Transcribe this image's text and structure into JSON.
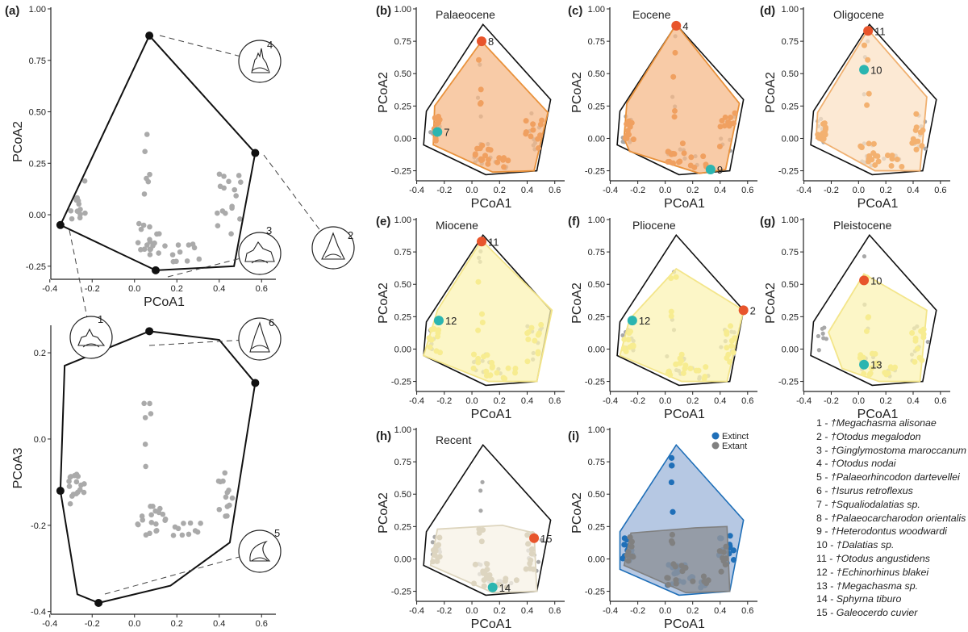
{
  "chart_data": [
    {
      "panel": "(a)",
      "type": "scatter",
      "title": "",
      "xlabel": "PCoA1",
      "ylabel": "PCoA2",
      "xlim": [
        -0.38,
        0.66
      ],
      "ylim": [
        -0.29,
        1.0
      ],
      "xticks": [
        -0.4,
        -0.2,
        0.0,
        0.2,
        0.4,
        0.6
      ],
      "yticks": [
        -0.25,
        0.0,
        0.25,
        0.5,
        0.75,
        1.0
      ],
      "hull_vertices": [
        [
          0.07,
          0.87
        ],
        [
          0.57,
          0.3
        ],
        [
          0.47,
          -0.25
        ],
        [
          0.1,
          -0.27
        ],
        [
          -0.35,
          -0.05
        ]
      ],
      "highlight_points": [
        [
          0.07,
          0.87
        ],
        [
          0.57,
          0.3
        ],
        [
          0.1,
          -0.27
        ],
        [
          -0.35,
          -0.05
        ]
      ],
      "tooth_icons": [
        {
          "label": "4",
          "vertex": [
            0.07,
            0.87
          ]
        },
        {
          "label": "3",
          "vertex": [
            0.1,
            -0.27
          ]
        },
        {
          "label": "2",
          "vertex": [
            0.57,
            0.3
          ]
        },
        {
          "label": "1",
          "vertex": [
            -0.35,
            -0.05
          ]
        }
      ]
    },
    {
      "panel": "",
      "type": "scatter",
      "title": "",
      "xlabel": "PCoA1",
      "ylabel": "PCoA3",
      "xlim": [
        -0.38,
        0.66
      ],
      "ylim": [
        -0.395,
        0.26
      ],
      "xticks": [
        -0.4,
        -0.2,
        0.0,
        0.2,
        0.4,
        0.6
      ],
      "yticks": [
        -0.4,
        -0.2,
        0.0,
        0.2
      ],
      "hull_vertices": [
        [
          0.07,
          0.25
        ],
        [
          0.4,
          0.23
        ],
        [
          0.57,
          0.13
        ],
        [
          0.45,
          -0.24
        ],
        [
          0.17,
          -0.34
        ],
        [
          -0.17,
          -0.38
        ],
        [
          -0.27,
          -0.36
        ],
        [
          -0.35,
          -0.12
        ],
        [
          -0.33,
          0.17
        ]
      ],
      "highlight_points": [
        [
          0.07,
          0.25
        ],
        [
          0.57,
          0.13
        ],
        [
          -0.17,
          -0.38
        ],
        [
          -0.35,
          -0.12
        ]
      ],
      "tooth_icons": [
        {
          "label": "6",
          "vertex": [
            0.07,
            0.25
          ]
        },
        {
          "label": "5",
          "vertex": [
            -0.17,
            -0.38
          ]
        }
      ]
    },
    {
      "panel": "(b)",
      "type": "scatter",
      "title": "Palaeocene",
      "xlabel": "PCoA1",
      "ylabel": "PCoA2",
      "xlim": [
        -0.38,
        0.66
      ],
      "ylim": [
        -0.29,
        1.0
      ],
      "xticks": [
        -0.4,
        -0.2,
        0.0,
        0.2,
        0.4,
        0.6
      ],
      "yticks": [
        -0.25,
        0.0,
        0.25,
        0.5,
        0.75,
        1.0
      ],
      "fill": "#f5b98a",
      "edge": "#e9923c",
      "point": "#f0a060",
      "hull_vertices": [
        [
          0.07,
          0.75
        ],
        [
          0.55,
          0.2
        ],
        [
          0.45,
          -0.25
        ],
        [
          0.15,
          -0.26
        ],
        [
          -0.28,
          -0.05
        ],
        [
          -0.27,
          0.25
        ]
      ],
      "highlights": [
        {
          "label": "8",
          "x": 0.07,
          "y": 0.75,
          "color": "#e8552c"
        },
        {
          "label": "7",
          "x": -0.25,
          "y": 0.05,
          "color": "#2bb5b0"
        }
      ]
    },
    {
      "panel": "(c)",
      "type": "scatter",
      "title": "Eocene",
      "xlabel": "PCoA1",
      "ylabel": "PCoA2",
      "xlim": [
        -0.38,
        0.66
      ],
      "ylim": [
        -0.29,
        1.0
      ],
      "xticks": [
        -0.4,
        -0.2,
        0.0,
        0.2,
        0.4,
        0.6
      ],
      "yticks": [
        -0.25,
        0.0,
        0.25,
        0.5,
        0.75,
        1.0
      ],
      "fill": "#f5b98a",
      "edge": "#e9923c",
      "point": "#f0a060",
      "hull_vertices": [
        [
          0.08,
          0.88
        ],
        [
          0.54,
          0.27
        ],
        [
          0.44,
          -0.24
        ],
        [
          0.25,
          -0.27
        ],
        [
          -0.26,
          -0.1
        ],
        [
          -0.3,
          0.0
        ],
        [
          -0.28,
          0.27
        ]
      ],
      "highlights": [
        {
          "label": "4",
          "x": 0.08,
          "y": 0.87,
          "color": "#e8552c"
        },
        {
          "label": "9",
          "x": 0.33,
          "y": -0.24,
          "color": "#2bb5b0"
        }
      ]
    },
    {
      "panel": "(d)",
      "type": "scatter",
      "title": "Oligocene",
      "xlabel": "PCoA1",
      "ylabel": "PCoA2",
      "xlim": [
        -0.38,
        0.66
      ],
      "ylim": [
        -0.29,
        1.0
      ],
      "xticks": [
        -0.4,
        -0.2,
        0.0,
        0.2,
        0.4,
        0.6
      ],
      "yticks": [
        -0.25,
        0.0,
        0.25,
        0.5,
        0.75,
        1.0
      ],
      "fill": "#fbe2c6",
      "edge": "#f0b070",
      "point": "#f3b170",
      "hull_vertices": [
        [
          0.07,
          0.84
        ],
        [
          0.5,
          0.32
        ],
        [
          0.45,
          -0.25
        ],
        [
          0.12,
          -0.25
        ],
        [
          -0.31,
          0.0
        ],
        [
          -0.3,
          0.2
        ]
      ],
      "highlights": [
        {
          "label": "11",
          "x": 0.07,
          "y": 0.83,
          "color": "#e8552c"
        },
        {
          "label": "10",
          "x": 0.04,
          "y": 0.53,
          "color": "#2bb5b0"
        }
      ]
    },
    {
      "panel": "(e)",
      "type": "scatter",
      "title": "Miocene",
      "xlabel": "PCoA1",
      "ylabel": "PCoA2",
      "xlim": [
        -0.38,
        0.66
      ],
      "ylim": [
        -0.29,
        1.0
      ],
      "xticks": [
        -0.4,
        -0.2,
        0.0,
        0.2,
        0.4,
        0.6
      ],
      "yticks": [
        -0.25,
        0.0,
        0.25,
        0.5,
        0.75,
        1.0
      ],
      "fill": "#fbf3b4",
      "edge": "#f3e58a",
      "point": "#f7ec90",
      "hull_vertices": [
        [
          0.07,
          0.84
        ],
        [
          0.58,
          0.3
        ],
        [
          0.47,
          -0.25
        ],
        [
          0.12,
          -0.25
        ],
        [
          -0.35,
          -0.05
        ],
        [
          -0.25,
          0.3
        ]
      ],
      "highlights": [
        {
          "label": "11",
          "x": 0.07,
          "y": 0.83,
          "color": "#e8552c"
        },
        {
          "label": "12",
          "x": -0.24,
          "y": 0.22,
          "color": "#2bb5b0"
        }
      ]
    },
    {
      "panel": "(f)",
      "type": "scatter",
      "title": "Pliocene",
      "xlabel": "PCoA1",
      "ylabel": "PCoA2",
      "xlim": [
        -0.38,
        0.66
      ],
      "ylim": [
        -0.29,
        1.0
      ],
      "xticks": [
        -0.4,
        -0.2,
        0.0,
        0.2,
        0.4,
        0.6
      ],
      "yticks": [
        -0.25,
        0.0,
        0.25,
        0.5,
        0.75,
        1.0
      ],
      "fill": "#fbf3b4",
      "edge": "#f3e58a",
      "point": "#f7ec90",
      "hull_vertices": [
        [
          0.08,
          0.62
        ],
        [
          0.57,
          0.3
        ],
        [
          0.45,
          -0.25
        ],
        [
          0.12,
          -0.25
        ],
        [
          -0.33,
          -0.05
        ],
        [
          -0.26,
          0.23
        ]
      ],
      "highlights": [
        {
          "label": "2",
          "x": 0.57,
          "y": 0.3,
          "color": "#e8552c"
        },
        {
          "label": "12",
          "x": -0.24,
          "y": 0.22,
          "color": "#2bb5b0"
        }
      ]
    },
    {
      "panel": "(g)",
      "type": "scatter",
      "title": "Pleistocene",
      "xlabel": "PCoA1",
      "ylabel": "PCoA2",
      "xlim": [
        -0.38,
        0.66
      ],
      "ylim": [
        -0.29,
        1.0
      ],
      "xticks": [
        -0.4,
        -0.2,
        0.0,
        0.2,
        0.4,
        0.6
      ],
      "yticks": [
        -0.25,
        0.0,
        0.25,
        0.5,
        0.75,
        1.0
      ],
      "fill": "#fbf3b4",
      "edge": "#f3e58a",
      "point": "#f7ec90",
      "hull_vertices": [
        [
          0.04,
          0.58
        ],
        [
          0.5,
          0.3
        ],
        [
          0.45,
          -0.25
        ],
        [
          0.15,
          -0.25
        ],
        [
          -0.12,
          -0.15
        ],
        [
          -0.22,
          0.13
        ]
      ],
      "highlights": [
        {
          "label": "10",
          "x": 0.04,
          "y": 0.53,
          "color": "#e8552c"
        },
        {
          "label": "13",
          "x": 0.04,
          "y": -0.12,
          "color": "#2bb5b0"
        }
      ]
    },
    {
      "panel": "(h)",
      "type": "scatter",
      "title": "Recent",
      "xlabel": "PCoA1",
      "ylabel": "PCoA2",
      "xlim": [
        -0.38,
        0.66
      ],
      "ylim": [
        -0.29,
        1.0
      ],
      "xticks": [
        -0.4,
        -0.2,
        0.0,
        0.2,
        0.4,
        0.6
      ],
      "yticks": [
        -0.25,
        0.0,
        0.25,
        0.5,
        0.75,
        1.0
      ],
      "fill": "#f7f2e6",
      "edge": "#ddd5be",
      "point": "#ddd5c0",
      "hull_vertices": [
        [
          -0.25,
          0.23
        ],
        [
          0.22,
          0.26
        ],
        [
          0.45,
          0.2
        ],
        [
          0.47,
          -0.25
        ],
        [
          0.15,
          -0.26
        ],
        [
          -0.3,
          -0.05
        ]
      ],
      "highlights": [
        {
          "label": "15",
          "x": 0.45,
          "y": 0.16,
          "color": "#e8552c"
        },
        {
          "label": "14",
          "x": 0.15,
          "y": -0.22,
          "color": "#2bb5b0"
        }
      ]
    },
    {
      "panel": "(i)",
      "type": "scatter",
      "title": "",
      "xlabel": "PCoA1",
      "ylabel": "PCoA2",
      "xlim": [
        -0.38,
        0.66
      ],
      "ylim": [
        -0.29,
        1.0
      ],
      "xticks": [
        -0.4,
        -0.2,
        0.0,
        0.2,
        0.4,
        0.6
      ],
      "yticks": [
        -0.25,
        0.0,
        0.25,
        0.5,
        0.75,
        1.0
      ],
      "legend": {
        "position": "top-right",
        "entries": [
          {
            "name": "Extinct",
            "color": "#1f6fb8"
          },
          {
            "name": "Extant",
            "color": "#808080"
          }
        ]
      },
      "series": [
        {
          "name": "Extinct",
          "color": "#1f6fb8",
          "fill": "#9db6d9",
          "hull_vertices": [
            [
              0.08,
              0.88
            ],
            [
              0.57,
              0.3
            ],
            [
              0.47,
              -0.25
            ],
            [
              0.1,
              -0.28
            ],
            [
              -0.33,
              -0.08
            ],
            [
              -0.33,
              0.21
            ]
          ]
        },
        {
          "name": "Extant",
          "color": "#808080",
          "fill": "#8f949c",
          "hull_vertices": [
            [
              -0.25,
              0.2
            ],
            [
              0.22,
              0.24
            ],
            [
              0.45,
              0.25
            ],
            [
              0.47,
              -0.25
            ],
            [
              0.15,
              -0.26
            ],
            [
              -0.3,
              -0.05
            ]
          ]
        }
      ]
    }
  ],
  "panel_tooth_labels": [
    "4",
    "3",
    "2",
    "1",
    "6",
    "5"
  ],
  "species_legend": [
    {
      "num": "1 -",
      "name": "†Megachasma alisonae"
    },
    {
      "num": "2 -",
      "name": "†Otodus megalodon"
    },
    {
      "num": "3 -",
      "name": "†Ginglymostoma maroccanum"
    },
    {
      "num": "4 -",
      "name": "†Otodus nodai"
    },
    {
      "num": "5 -",
      "name": "†Palaeorhincodon dartevellei"
    },
    {
      "num": "6 -",
      "name": "†Isurus retroflexus"
    },
    {
      "num": "7 -",
      "name": "†Squaliodalatias sp."
    },
    {
      "num": "8 -",
      "name": "†Palaeocarcharodon orientalis"
    },
    {
      "num": "9 -",
      "name": "†Heterodontus woodwardi"
    },
    {
      "num": "10 -",
      "name": "†Dalatias sp."
    },
    {
      "num": "11 -",
      "name": "†Otodus angustidens"
    },
    {
      "num": "12 -",
      "name": "†Echinorhinus blakei"
    },
    {
      "num": "13 -",
      "name": "†Megachasma sp."
    },
    {
      "num": "14 -",
      "name": "Sphyrna tiburo"
    },
    {
      "num": "15 -",
      "name": "Galeocerdo cuvier"
    }
  ]
}
